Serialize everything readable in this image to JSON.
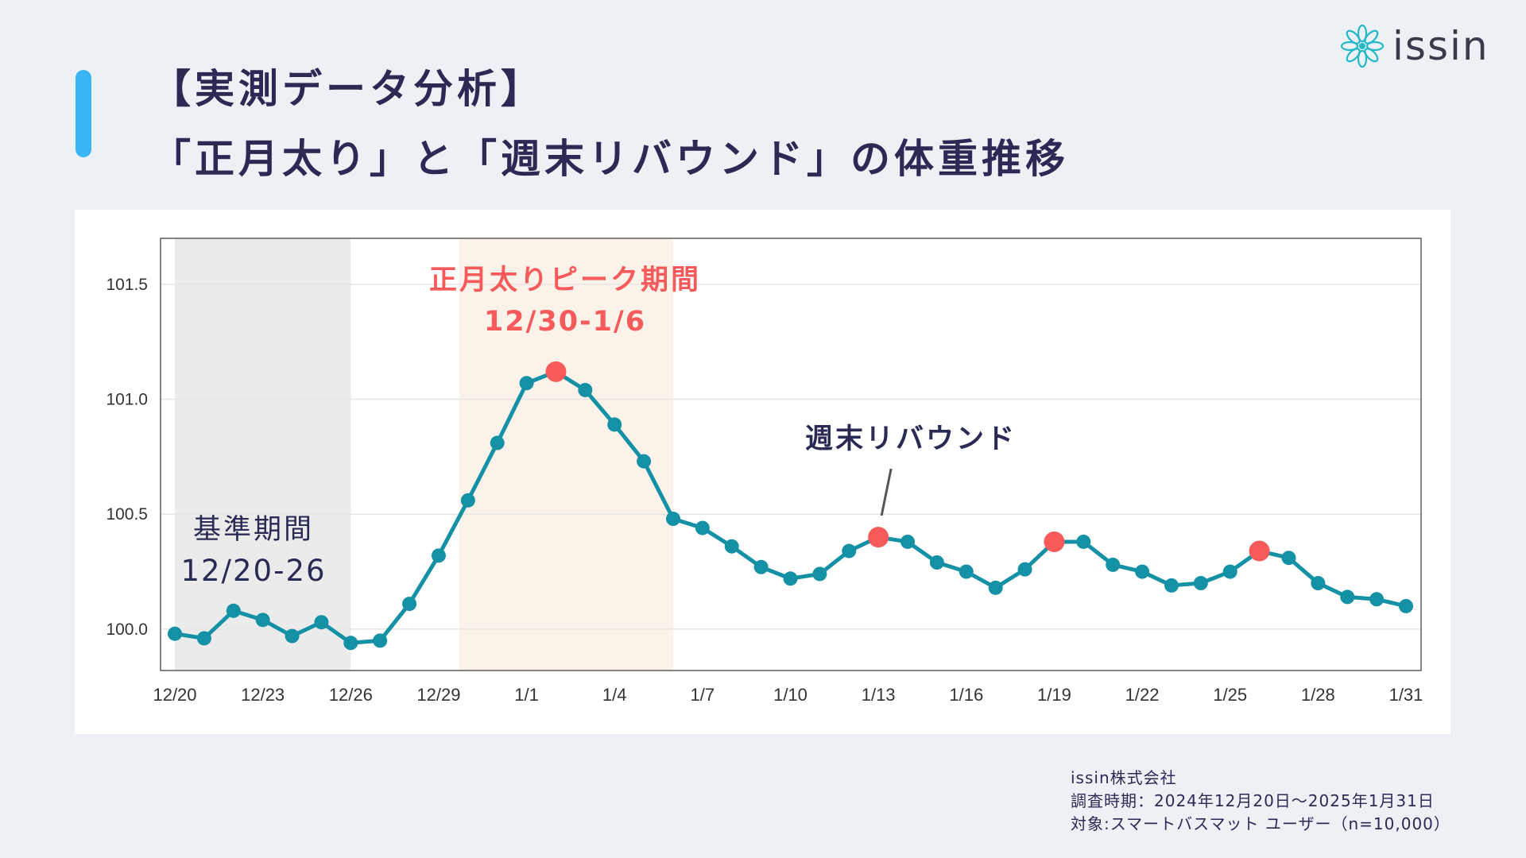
{
  "header": {
    "title_line1": "【実測データ分析】",
    "title_line2": "「正月太り」と「週末リバウンド」の体重推移"
  },
  "logo": {
    "text": "issin",
    "icon": "flower-icon",
    "color": "#22b8c8"
  },
  "colors": {
    "line": "#1591a6",
    "highlight": "#f65a5a",
    "baseline_band": "#ebebeb",
    "peak_band": "#fbf3e9",
    "accent": "#3bb6f5"
  },
  "chart_data": {
    "type": "line",
    "x": [
      "12/20",
      "12/21",
      "12/22",
      "12/23",
      "12/24",
      "12/25",
      "12/26",
      "12/27",
      "12/28",
      "12/29",
      "12/30",
      "12/31",
      "1/1",
      "1/2",
      "1/3",
      "1/4",
      "1/5",
      "1/6",
      "1/7",
      "1/8",
      "1/9",
      "1/10",
      "1/11",
      "1/12",
      "1/13",
      "1/14",
      "1/15",
      "1/16",
      "1/17",
      "1/18",
      "1/19",
      "1/20",
      "1/21",
      "1/22",
      "1/23",
      "1/24",
      "1/25",
      "1/26",
      "1/27",
      "1/28",
      "1/29",
      "1/30",
      "1/31"
    ],
    "values": [
      99.98,
      99.96,
      100.08,
      100.04,
      99.97,
      100.03,
      99.94,
      99.95,
      100.11,
      100.32,
      100.56,
      100.81,
      101.07,
      101.12,
      101.04,
      100.89,
      100.73,
      100.48,
      100.44,
      100.36,
      100.27,
      100.22,
      100.24,
      100.34,
      100.4,
      100.38,
      100.29,
      100.25,
      100.18,
      100.26,
      100.38,
      100.38,
      100.28,
      100.25,
      100.19,
      100.2,
      100.25,
      100.34,
      100.31,
      100.2,
      100.14,
      100.13,
      100.1
    ],
    "highlighted": [
      "1/2",
      "1/13",
      "1/19",
      "1/26"
    ],
    "ylim": [
      99.82,
      101.7
    ],
    "yticks": [
      "100.0",
      "100.5",
      "101.0",
      "101.5"
    ],
    "xticks": [
      "12/20",
      "12/23",
      "12/26",
      "12/29",
      "1/1",
      "1/4",
      "1/7",
      "1/10",
      "1/13",
      "1/16",
      "1/19",
      "1/22",
      "1/25",
      "1/28",
      "1/31"
    ],
    "grid": true,
    "bands": [
      {
        "from": "12/20",
        "to": "12/26",
        "label": "基準期間",
        "sublabel": "12/20-26"
      },
      {
        "from": "12/30",
        "to": "1/6",
        "label": "正月太りピーク期間",
        "sublabel": "12/30-1/6"
      }
    ],
    "annotation": {
      "text": "週末リバウンド",
      "target": "1/13"
    }
  },
  "footer": {
    "company": "issin株式会社",
    "period": "調査時期：2024年12月20日～2025年1月31日",
    "target": "対象:スマートバスマット ユーザー（n=10,000）"
  }
}
